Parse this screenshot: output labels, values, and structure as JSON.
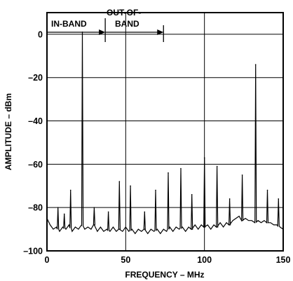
{
  "chart_data": {
    "type": "line",
    "xlabel": "FREQUENCY – MHz",
    "ylabel": "AMPLITUDE – dBm",
    "xlim": [
      0,
      150
    ],
    "ylim": [
      -100,
      10
    ],
    "x_ticks": [
      0,
      50,
      100,
      150
    ],
    "y_ticks": [
      0,
      -20,
      -40,
      -60,
      -80,
      -100
    ],
    "x_tick_labels": [
      "0",
      "50",
      "100",
      "150"
    ],
    "y_tick_labels": [
      "0",
      "–20",
      "–40",
      "–60",
      "–80",
      "–100"
    ],
    "grid": true,
    "annotations": {
      "in_band": {
        "label": "IN-BAND",
        "x_start": 0,
        "x_end": 37
      },
      "out_of_band": {
        "label_lines": [
          "OUT-OF-",
          "BAND"
        ],
        "x_start": 37,
        "x_end": 74
      }
    },
    "noise_floor_points": [
      [
        0,
        -85
      ],
      [
        2,
        -88
      ],
      [
        4,
        -90
      ],
      [
        6,
        -89
      ],
      [
        8,
        -91
      ],
      [
        10,
        -89
      ],
      [
        12,
        -90
      ],
      [
        14,
        -88
      ],
      [
        16,
        -91
      ],
      [
        18,
        -89
      ],
      [
        20,
        -90
      ],
      [
        22,
        -88
      ],
      [
        24,
        -90
      ],
      [
        26,
        -89
      ],
      [
        28,
        -90
      ],
      [
        30,
        -88
      ],
      [
        32,
        -91
      ],
      [
        34,
        -89
      ],
      [
        36,
        -91
      ],
      [
        38,
        -90
      ],
      [
        40,
        -91
      ],
      [
        42,
        -89
      ],
      [
        44,
        -91
      ],
      [
        46,
        -90
      ],
      [
        48,
        -91
      ],
      [
        50,
        -89
      ],
      [
        52,
        -91
      ],
      [
        54,
        -90
      ],
      [
        56,
        -92
      ],
      [
        58,
        -90
      ],
      [
        60,
        -91
      ],
      [
        62,
        -90
      ],
      [
        64,
        -92
      ],
      [
        66,
        -90
      ],
      [
        68,
        -91
      ],
      [
        70,
        -90
      ],
      [
        72,
        -92
      ],
      [
        74,
        -90
      ],
      [
        76,
        -91
      ],
      [
        78,
        -89
      ],
      [
        80,
        -91
      ],
      [
        82,
        -89
      ],
      [
        84,
        -90
      ],
      [
        86,
        -89
      ],
      [
        88,
        -91
      ],
      [
        90,
        -89
      ],
      [
        92,
        -90
      ],
      [
        94,
        -88
      ],
      [
        96,
        -90
      ],
      [
        98,
        -88
      ],
      [
        100,
        -89
      ],
      [
        102,
        -88
      ],
      [
        104,
        -90
      ],
      [
        106,
        -88
      ],
      [
        108,
        -89
      ],
      [
        110,
        -87
      ],
      [
        112,
        -89
      ],
      [
        114,
        -87
      ],
      [
        116,
        -88
      ],
      [
        118,
        -86
      ],
      [
        120,
        -85
      ],
      [
        122,
        -84
      ],
      [
        124,
        -86
      ],
      [
        126,
        -85
      ],
      [
        128,
        -86
      ],
      [
        130,
        -86
      ],
      [
        132,
        -87
      ],
      [
        134,
        -86
      ],
      [
        136,
        -87
      ],
      [
        138,
        -86
      ],
      [
        140,
        -87
      ],
      [
        142,
        -87
      ],
      [
        144,
        -88
      ],
      [
        146,
        -88
      ],
      [
        148,
        -89
      ],
      [
        150,
        -90
      ]
    ],
    "peaks": [
      {
        "x": 7,
        "y": -80
      },
      {
        "x": 11,
        "y": -83
      },
      {
        "x": 15,
        "y": -72
      },
      {
        "x": 22.5,
        "y": 1
      },
      {
        "x": 30,
        "y": -80
      },
      {
        "x": 39,
        "y": -82
      },
      {
        "x": 46,
        "y": -68
      },
      {
        "x": 53,
        "y": -70
      },
      {
        "x": 62,
        "y": -82
      },
      {
        "x": 69,
        "y": -72
      },
      {
        "x": 77,
        "y": -64
      },
      {
        "x": 85,
        "y": -62
      },
      {
        "x": 92,
        "y": -74
      },
      {
        "x": 100,
        "y": -57
      },
      {
        "x": 108,
        "y": -61
      },
      {
        "x": 116,
        "y": -76
      },
      {
        "x": 124,
        "y": -65
      },
      {
        "x": 132.5,
        "y": -14
      },
      {
        "x": 140,
        "y": -72
      },
      {
        "x": 147,
        "y": -76
      }
    ]
  }
}
